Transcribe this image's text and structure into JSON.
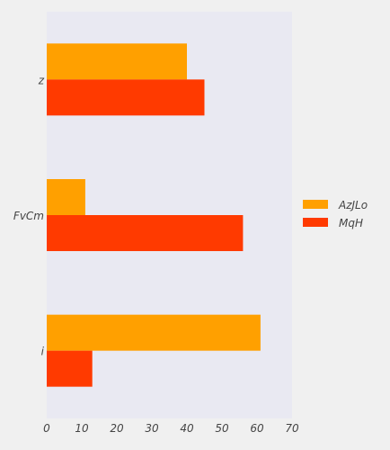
{
  "chart_data": {
    "type": "bar",
    "orientation": "horizontal",
    "categories": [
      "z",
      "FvCm",
      "i"
    ],
    "series": [
      {
        "name": "AzJLo",
        "values": [
          40,
          11,
          61
        ],
        "color": "#ffa000"
      },
      {
        "name": "MqH",
        "values": [
          45,
          56,
          13
        ],
        "color": "#ff3a00"
      }
    ],
    "xlim": [
      0,
      70
    ],
    "xticks": [
      "0",
      "10",
      "20",
      "30",
      "40",
      "50",
      "60",
      "70"
    ],
    "grid": false,
    "legend_position": "right",
    "title": "",
    "xlabel": "",
    "ylabel": ""
  },
  "colors": {
    "page_background": "#f0f0f0",
    "plot_background": "#e9e9f2"
  }
}
